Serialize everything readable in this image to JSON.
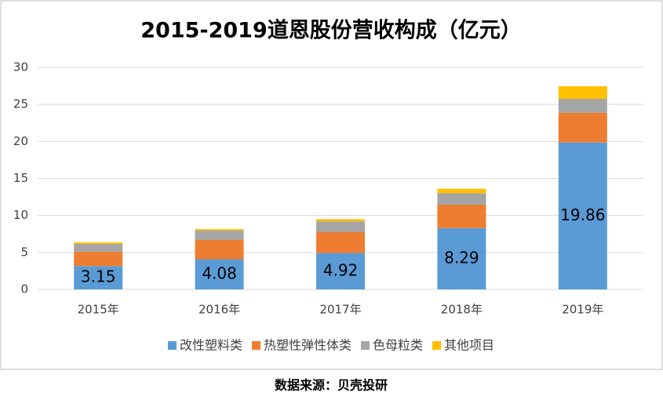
{
  "chart_data": {
    "type": "stacked_bar",
    "title": "2015-2019道恩股份营收构成（亿元）",
    "categories": [
      "2015年",
      "2016年",
      "2017年",
      "2018年",
      "2019年"
    ],
    "series": [
      {
        "name": "改性塑料类",
        "color": "#5b9bd5",
        "values": [
          3.15,
          4.08,
          4.92,
          8.29,
          19.86
        ],
        "labels": true
      },
      {
        "name": "热塑性弹性体类",
        "color": "#ed7d31",
        "values": [
          1.95,
          2.6,
          2.82,
          3.16,
          4.0
        ]
      },
      {
        "name": "色母粒类",
        "color": "#a5a5a5",
        "values": [
          1.05,
          1.27,
          1.46,
          1.55,
          1.9
        ]
      },
      {
        "name": "其他项目",
        "color": "#ffc000",
        "values": [
          0.2,
          0.2,
          0.3,
          0.6,
          1.7
        ]
      }
    ],
    "ylim": [
      0,
      30
    ],
    "yticks": [
      0,
      5,
      10,
      15,
      20,
      25,
      30
    ],
    "grid": true,
    "legend": "bottom",
    "source": "数据来源：贝壳投研"
  }
}
